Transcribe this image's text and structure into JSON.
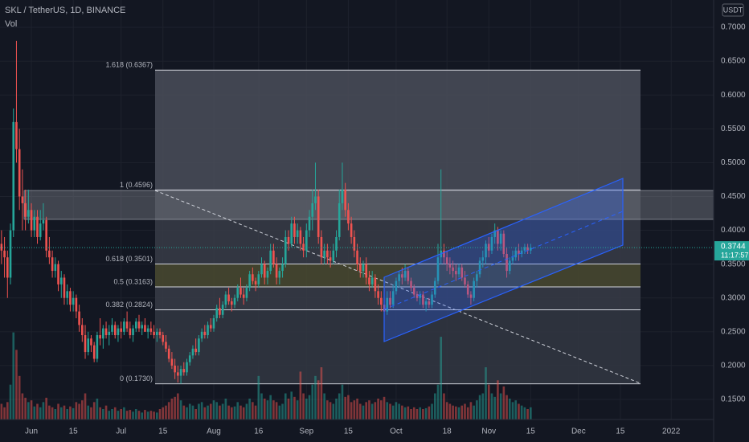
{
  "chart_data": {
    "type": "candlestick",
    "title": "SKL / TetherUS, 1D, BINANCE",
    "subtitle": "Vol",
    "currency": "USDT",
    "ylim": [
      0.1203,
      0.7404
    ],
    "yticks": [
      {
        "value": 0.7,
        "label": "0.7000"
      },
      {
        "value": 0.65,
        "label": "0.6500"
      },
      {
        "value": 0.6,
        "label": "0.6000"
      },
      {
        "value": 0.55,
        "label": "0.5500"
      },
      {
        "value": 0.5,
        "label": "0.5000"
      },
      {
        "value": 0.45,
        "label": "0.4500"
      },
      {
        "value": 0.4,
        "label": "0.4000"
      },
      {
        "value": 0.35,
        "label": "0.3500"
      },
      {
        "value": 0.3,
        "label": "0.3000"
      },
      {
        "value": 0.25,
        "label": "0.2500"
      },
      {
        "value": 0.2,
        "label": "0.2000"
      },
      {
        "value": 0.15,
        "label": "0.1500"
      }
    ],
    "xlim": [
      -0.5,
      238.2
    ],
    "xticks": [
      {
        "value": 10,
        "label": "Jun"
      },
      {
        "value": 24,
        "label": "15"
      },
      {
        "value": 40,
        "label": "Jul"
      },
      {
        "value": 54,
        "label": "15"
      },
      {
        "value": 71,
        "label": "Aug"
      },
      {
        "value": 86,
        "label": "16"
      },
      {
        "value": 102,
        "label": "Sep"
      },
      {
        "value": 116,
        "label": "15"
      },
      {
        "value": 132,
        "label": "Oct"
      },
      {
        "value": 149,
        "label": "18"
      },
      {
        "value": 163,
        "label": "Nov"
      },
      {
        "value": 177,
        "label": "15"
      },
      {
        "value": 193,
        "label": "Dec"
      },
      {
        "value": 207,
        "label": "15"
      },
      {
        "value": 224,
        "label": "2022"
      }
    ],
    "grid": true,
    "up_color": "#26a69a",
    "down_color": "#ef5350",
    "candles": [
      [
        0.38,
        0.4,
        0.35,
        0.37
      ],
      [
        0.37,
        0.39,
        0.33,
        0.36
      ],
      [
        0.36,
        0.37,
        0.3,
        0.33
      ],
      [
        0.33,
        0.41,
        0.32,
        0.4
      ],
      [
        0.4,
        0.58,
        0.39,
        0.56
      ],
      [
        0.56,
        0.68,
        0.5,
        0.52
      ],
      [
        0.52,
        0.55,
        0.43,
        0.45
      ],
      [
        0.45,
        0.49,
        0.4,
        0.44
      ],
      [
        0.44,
        0.46,
        0.4,
        0.42
      ],
      [
        0.42,
        0.46,
        0.41,
        0.43
      ],
      [
        0.43,
        0.44,
        0.39,
        0.4
      ],
      [
        0.4,
        0.43,
        0.39,
        0.42
      ],
      [
        0.42,
        0.43,
        0.38,
        0.39
      ],
      [
        0.39,
        0.43,
        0.385,
        0.41
      ],
      [
        0.41,
        0.44,
        0.4,
        0.415
      ],
      [
        0.415,
        0.42,
        0.36,
        0.37
      ],
      [
        0.37,
        0.39,
        0.35,
        0.36
      ],
      [
        0.36,
        0.37,
        0.33,
        0.34
      ],
      [
        0.34,
        0.36,
        0.33,
        0.35
      ],
      [
        0.35,
        0.355,
        0.31,
        0.32
      ],
      [
        0.32,
        0.34,
        0.3,
        0.33
      ],
      [
        0.33,
        0.335,
        0.29,
        0.3
      ],
      [
        0.3,
        0.32,
        0.29,
        0.31
      ],
      [
        0.31,
        0.315,
        0.28,
        0.29
      ],
      [
        0.29,
        0.31,
        0.28,
        0.3
      ],
      [
        0.3,
        0.305,
        0.27,
        0.28
      ],
      [
        0.28,
        0.29,
        0.25,
        0.26
      ],
      [
        0.26,
        0.27,
        0.235,
        0.245
      ],
      [
        0.245,
        0.26,
        0.21,
        0.22
      ],
      [
        0.22,
        0.25,
        0.215,
        0.24
      ],
      [
        0.24,
        0.245,
        0.22,
        0.23
      ],
      [
        0.23,
        0.235,
        0.205,
        0.21
      ],
      [
        0.21,
        0.25,
        0.205,
        0.245
      ],
      [
        0.245,
        0.27,
        0.23,
        0.24
      ],
      [
        0.24,
        0.26,
        0.225,
        0.255
      ],
      [
        0.255,
        0.265,
        0.24,
        0.245
      ],
      [
        0.245,
        0.26,
        0.23,
        0.25
      ],
      [
        0.25,
        0.27,
        0.245,
        0.26
      ],
      [
        0.26,
        0.265,
        0.24,
        0.245
      ],
      [
        0.245,
        0.26,
        0.235,
        0.255
      ],
      [
        0.255,
        0.265,
        0.24,
        0.25
      ],
      [
        0.25,
        0.27,
        0.245,
        0.265
      ],
      [
        0.265,
        0.28,
        0.25,
        0.255
      ],
      [
        0.255,
        0.265,
        0.24,
        0.245
      ],
      [
        0.245,
        0.26,
        0.235,
        0.255
      ],
      [
        0.255,
        0.27,
        0.25,
        0.265
      ],
      [
        0.265,
        0.275,
        0.25,
        0.255
      ],
      [
        0.255,
        0.265,
        0.245,
        0.26
      ],
      [
        0.26,
        0.27,
        0.25,
        0.25
      ],
      [
        0.25,
        0.26,
        0.24,
        0.255
      ],
      [
        0.255,
        0.265,
        0.245,
        0.25
      ],
      [
        0.25,
        0.26,
        0.24,
        0.245
      ],
      [
        0.245,
        0.255,
        0.235,
        0.25
      ],
      [
        0.25,
        0.255,
        0.24,
        0.245
      ],
      [
        0.245,
        0.25,
        0.23,
        0.235
      ],
      [
        0.235,
        0.245,
        0.22,
        0.225
      ],
      [
        0.225,
        0.23,
        0.205,
        0.21
      ],
      [
        0.21,
        0.22,
        0.195,
        0.2
      ],
      [
        0.2,
        0.21,
        0.18,
        0.19
      ],
      [
        0.19,
        0.2,
        0.175,
        0.185
      ],
      [
        0.185,
        0.2,
        0.173,
        0.195
      ],
      [
        0.195,
        0.205,
        0.185,
        0.19
      ],
      [
        0.19,
        0.21,
        0.185,
        0.205
      ],
      [
        0.205,
        0.22,
        0.2,
        0.215
      ],
      [
        0.215,
        0.23,
        0.21,
        0.225
      ],
      [
        0.225,
        0.24,
        0.215,
        0.22
      ],
      [
        0.22,
        0.245,
        0.215,
        0.24
      ],
      [
        0.24,
        0.255,
        0.235,
        0.25
      ],
      [
        0.25,
        0.26,
        0.24,
        0.245
      ],
      [
        0.245,
        0.265,
        0.24,
        0.26
      ],
      [
        0.26,
        0.27,
        0.25,
        0.255
      ],
      [
        0.255,
        0.275,
        0.25,
        0.27
      ],
      [
        0.27,
        0.29,
        0.265,
        0.285
      ],
      [
        0.285,
        0.3,
        0.27,
        0.275
      ],
      [
        0.275,
        0.295,
        0.27,
        0.29
      ],
      [
        0.29,
        0.31,
        0.285,
        0.305
      ],
      [
        0.305,
        0.315,
        0.29,
        0.295
      ],
      [
        0.295,
        0.3,
        0.28,
        0.29
      ],
      [
        0.29,
        0.305,
        0.285,
        0.3
      ],
      [
        0.3,
        0.32,
        0.295,
        0.315
      ],
      [
        0.315,
        0.33,
        0.3,
        0.305
      ],
      [
        0.305,
        0.315,
        0.29,
        0.3
      ],
      [
        0.3,
        0.32,
        0.295,
        0.315
      ],
      [
        0.315,
        0.34,
        0.31,
        0.335
      ],
      [
        0.335,
        0.345,
        0.32,
        0.325
      ],
      [
        0.325,
        0.33,
        0.31,
        0.32
      ],
      [
        0.32,
        0.34,
        0.315,
        0.335
      ],
      [
        0.335,
        0.36,
        0.33,
        0.35
      ],
      [
        0.35,
        0.355,
        0.32,
        0.33
      ],
      [
        0.33,
        0.345,
        0.32,
        0.34
      ],
      [
        0.34,
        0.38,
        0.335,
        0.37
      ],
      [
        0.37,
        0.38,
        0.345,
        0.35
      ],
      [
        0.35,
        0.36,
        0.32,
        0.33
      ],
      [
        0.33,
        0.345,
        0.32,
        0.34
      ],
      [
        0.34,
        0.36,
        0.33,
        0.35
      ],
      [
        0.35,
        0.4,
        0.345,
        0.39
      ],
      [
        0.39,
        0.4,
        0.37,
        0.38
      ],
      [
        0.38,
        0.42,
        0.375,
        0.41
      ],
      [
        0.41,
        0.42,
        0.38,
        0.39
      ],
      [
        0.39,
        0.41,
        0.38,
        0.4
      ],
      [
        0.4,
        0.405,
        0.37,
        0.38
      ],
      [
        0.38,
        0.39,
        0.36,
        0.37
      ],
      [
        0.37,
        0.41,
        0.36,
        0.4
      ],
      [
        0.4,
        0.43,
        0.39,
        0.42
      ],
      [
        0.42,
        0.46,
        0.4,
        0.44
      ],
      [
        0.44,
        0.5,
        0.43,
        0.45
      ],
      [
        0.45,
        0.46,
        0.38,
        0.39
      ],
      [
        0.39,
        0.4,
        0.35,
        0.36
      ],
      [
        0.36,
        0.38,
        0.35,
        0.37
      ],
      [
        0.37,
        0.38,
        0.35,
        0.36
      ],
      [
        0.36,
        0.37,
        0.345,
        0.355
      ],
      [
        0.355,
        0.38,
        0.35,
        0.37
      ],
      [
        0.37,
        0.4,
        0.36,
        0.39
      ],
      [
        0.39,
        0.46,
        0.385,
        0.44
      ],
      [
        0.44,
        0.5,
        0.43,
        0.46
      ],
      [
        0.46,
        0.47,
        0.42,
        0.43
      ],
      [
        0.43,
        0.44,
        0.4,
        0.41
      ],
      [
        0.41,
        0.42,
        0.38,
        0.39
      ],
      [
        0.39,
        0.4,
        0.36,
        0.37
      ],
      [
        0.37,
        0.38,
        0.34,
        0.35
      ],
      [
        0.35,
        0.36,
        0.33,
        0.34
      ],
      [
        0.34,
        0.355,
        0.33,
        0.35
      ],
      [
        0.35,
        0.36,
        0.32,
        0.33
      ],
      [
        0.33,
        0.34,
        0.31,
        0.32
      ],
      [
        0.32,
        0.34,
        0.315,
        0.33
      ],
      [
        0.33,
        0.335,
        0.3,
        0.31
      ],
      [
        0.31,
        0.32,
        0.29,
        0.3
      ],
      [
        0.3,
        0.31,
        0.28,
        0.29
      ],
      [
        0.29,
        0.3,
        0.27,
        0.28
      ],
      [
        0.28,
        0.31,
        0.275,
        0.3
      ],
      [
        0.3,
        0.31,
        0.285,
        0.29
      ],
      [
        0.29,
        0.32,
        0.285,
        0.31
      ],
      [
        0.31,
        0.33,
        0.305,
        0.325
      ],
      [
        0.325,
        0.34,
        0.315,
        0.335
      ],
      [
        0.335,
        0.345,
        0.32,
        0.33
      ],
      [
        0.33,
        0.35,
        0.325,
        0.34
      ],
      [
        0.34,
        0.345,
        0.32,
        0.325
      ],
      [
        0.325,
        0.33,
        0.31,
        0.315
      ],
      [
        0.315,
        0.32,
        0.3,
        0.305
      ],
      [
        0.305,
        0.31,
        0.295,
        0.3
      ],
      [
        0.3,
        0.31,
        0.29,
        0.305
      ],
      [
        0.305,
        0.31,
        0.285,
        0.29
      ],
      [
        0.29,
        0.3,
        0.28,
        0.295
      ],
      [
        0.295,
        0.3,
        0.285,
        0.29
      ],
      [
        0.29,
        0.31,
        0.285,
        0.305
      ],
      [
        0.305,
        0.33,
        0.3,
        0.325
      ],
      [
        0.325,
        0.38,
        0.32,
        0.36
      ],
      [
        0.36,
        0.49,
        0.35,
        0.37
      ],
      [
        0.37,
        0.38,
        0.35,
        0.36
      ],
      [
        0.36,
        0.37,
        0.34,
        0.35
      ],
      [
        0.35,
        0.36,
        0.335,
        0.345
      ],
      [
        0.345,
        0.355,
        0.33,
        0.34
      ],
      [
        0.34,
        0.35,
        0.325,
        0.335
      ],
      [
        0.335,
        0.35,
        0.33,
        0.345
      ],
      [
        0.345,
        0.35,
        0.325,
        0.33
      ],
      [
        0.33,
        0.34,
        0.315,
        0.32
      ],
      [
        0.32,
        0.325,
        0.3,
        0.305
      ],
      [
        0.305,
        0.31,
        0.29,
        0.3
      ],
      [
        0.3,
        0.33,
        0.295,
        0.325
      ],
      [
        0.325,
        0.34,
        0.315,
        0.335
      ],
      [
        0.335,
        0.36,
        0.33,
        0.355
      ],
      [
        0.355,
        0.37,
        0.345,
        0.36
      ],
      [
        0.36,
        0.385,
        0.35,
        0.38
      ],
      [
        0.38,
        0.39,
        0.36,
        0.37
      ],
      [
        0.37,
        0.395,
        0.365,
        0.39
      ],
      [
        0.39,
        0.41,
        0.38,
        0.4
      ],
      [
        0.4,
        0.405,
        0.37,
        0.38
      ],
      [
        0.38,
        0.4,
        0.37,
        0.395
      ],
      [
        0.395,
        0.4,
        0.36,
        0.365
      ],
      [
        0.365,
        0.375,
        0.33,
        0.34
      ],
      [
        0.34,
        0.36,
        0.335,
        0.355
      ],
      [
        0.355,
        0.37,
        0.35,
        0.36
      ],
      [
        0.36,
        0.375,
        0.355,
        0.37
      ],
      [
        0.37,
        0.38,
        0.355,
        0.365
      ],
      [
        0.365,
        0.375,
        0.36,
        0.37
      ],
      [
        0.37,
        0.38,
        0.365,
        0.375
      ],
      [
        0.375,
        0.38,
        0.365,
        0.37
      ],
      [
        0.37,
        0.38,
        0.365,
        0.3744
      ]
    ],
    "volume_ylim": [
      0,
      120
    ],
    "volume": [
      18,
      14,
      20,
      40,
      100,
      80,
      50,
      30,
      25,
      20,
      22,
      15,
      18,
      14,
      20,
      25,
      16,
      14,
      12,
      18,
      14,
      16,
      12,
      15,
      13,
      20,
      18,
      22,
      30,
      16,
      14,
      20,
      24,
      14,
      12,
      16,
      10,
      12,
      14,
      10,
      12,
      14,
      10,
      11,
      9,
      12,
      10,
      8,
      11,
      9,
      10,
      9,
      8,
      12,
      14,
      16,
      20,
      24,
      26,
      30,
      22,
      16,
      14,
      18,
      16,
      12,
      18,
      20,
      14,
      16,
      18,
      22,
      20,
      16,
      18,
      24,
      16,
      14,
      15,
      20,
      16,
      14,
      18,
      24,
      20,
      16,
      50,
      30,
      24,
      22,
      28,
      22,
      20,
      16,
      18,
      30,
      24,
      32,
      26,
      22,
      55,
      30,
      24,
      28,
      40,
      50,
      45,
      60,
      30,
      22,
      20,
      18,
      24,
      30,
      40,
      26,
      28,
      20,
      22,
      24,
      18,
      16,
      20,
      22,
      18,
      20,
      24,
      22,
      26,
      20,
      18,
      16,
      20,
      18,
      16,
      14,
      15,
      12,
      14,
      12,
      14,
      12,
      13,
      15,
      18,
      30,
      40,
      95,
      30,
      20,
      18,
      16,
      15,
      14,
      16,
      18,
      14,
      20,
      16,
      22,
      28,
      30,
      60,
      40,
      30,
      26,
      45,
      30,
      38,
      28,
      24,
      20,
      22,
      18,
      16,
      14,
      12,
      14
    ],
    "fib": {
      "levels": [
        {
          "label": "1.618 (0.6367)",
          "value": 0.6367,
          "zone": "#4a4e59"
        },
        {
          "label": "1 (0.4596)",
          "value": 0.4596,
          "zone": "#383c47"
        },
        {
          "label": "0.618 (0.3501)",
          "value": 0.3501,
          "zone": "#4a4a30"
        },
        {
          "label": "0.5 (0.3163)",
          "value": 0.3163,
          "zone": "#383c47"
        },
        {
          "label": "0.382 (0.2824)",
          "value": 0.2824,
          "zone": "#333742"
        },
        {
          "label": "0 (0.1730)",
          "value": 0.173
        }
      ]
    },
    "last_price": 0.3744,
    "countdown": "11:17:57"
  }
}
